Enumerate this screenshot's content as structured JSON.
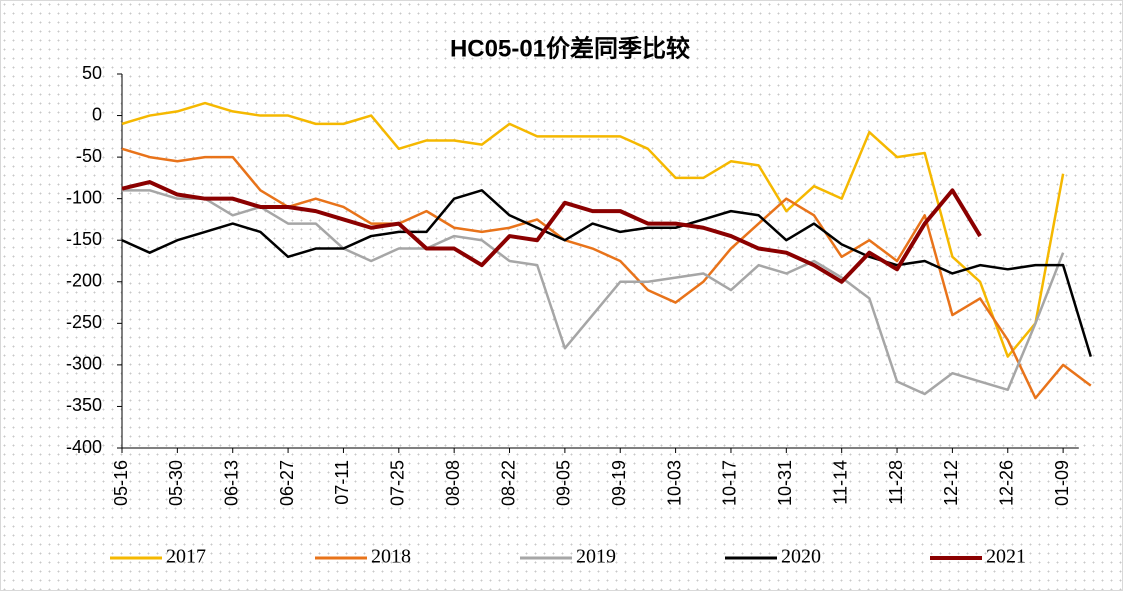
{
  "chart_data": {
    "type": "line",
    "title": "HC05-01价差同季比较",
    "categories": [
      "05-16",
      null,
      "05-30",
      null,
      "06-13",
      null,
      "06-27",
      null,
      "07-11",
      null,
      "07-25",
      null,
      "08-08",
      null,
      "08-22",
      null,
      "09-05",
      null,
      "09-19",
      null,
      "10-03",
      null,
      "10-17",
      null,
      "10-31",
      null,
      "11-14",
      null,
      "11-28",
      null,
      "12-12",
      null,
      "12-26",
      null,
      "01-09",
      null
    ],
    "ylim": [
      -400,
      50
    ],
    "yticks": [
      -400,
      -350,
      -300,
      -250,
      -200,
      -150,
      -100,
      -50,
      0,
      50
    ],
    "legend": "bottom",
    "series": [
      {
        "name": "2017",
        "color": "#f5b800",
        "values": [
          -10,
          0,
          5,
          15,
          5,
          0,
          0,
          -10,
          -10,
          0,
          -40,
          -30,
          -30,
          -35,
          -10,
          -25,
          -25,
          -25,
          -25,
          -40,
          -75,
          -75,
          -55,
          -60,
          -115,
          -85,
          -100,
          -20,
          -50,
          -45,
          -170,
          -200,
          -290,
          -250,
          -70,
          null
        ]
      },
      {
        "name": "2018",
        "color": "#e8731a",
        "values": [
          -40,
          -50,
          -55,
          -50,
          -50,
          -90,
          -110,
          -100,
          -110,
          -130,
          -130,
          -115,
          -135,
          -140,
          -135,
          -125,
          -150,
          -160,
          -175,
          -210,
          -225,
          -200,
          -160,
          -130,
          -100,
          -120,
          -170,
          -150,
          -175,
          -120,
          -240,
          -220,
          -270,
          -340,
          -300,
          -325
        ]
      },
      {
        "name": "2019",
        "color": "#a6a6a6",
        "values": [
          -90,
          -90,
          -100,
          -100,
          -120,
          -110,
          -130,
          -130,
          -160,
          -175,
          -160,
          -160,
          -145,
          -150,
          -175,
          -180,
          -280,
          -240,
          -200,
          -200,
          -195,
          -190,
          -210,
          -180,
          -190,
          -175,
          -195,
          -220,
          -320,
          -335,
          -310,
          -320,
          -330,
          -250,
          -165,
          null
        ]
      },
      {
        "name": "2020",
        "color": "#000000",
        "values": [
          -150,
          -165,
          -150,
          -140,
          -130,
          -140,
          -170,
          -160,
          -160,
          -145,
          -140,
          -140,
          -100,
          -90,
          -120,
          -135,
          -150,
          -130,
          -140,
          -135,
          -135,
          -125,
          -115,
          -120,
          -150,
          -130,
          -155,
          -170,
          -180,
          -175,
          -190,
          -180,
          -185,
          -180,
          -180,
          -290
        ]
      },
      {
        "name": "2021",
        "color": "#8b0000",
        "values": [
          -88,
          -80,
          -95,
          -100,
          -100,
          -110,
          -110,
          -115,
          -125,
          -135,
          -130,
          -160,
          -160,
          -180,
          -145,
          -150,
          -105,
          -115,
          -115,
          -130,
          -130,
          -135,
          -145,
          -160,
          -165,
          -180,
          -200,
          -165,
          -185,
          -130,
          -90,
          -145,
          null,
          null,
          null,
          null
        ]
      }
    ]
  }
}
